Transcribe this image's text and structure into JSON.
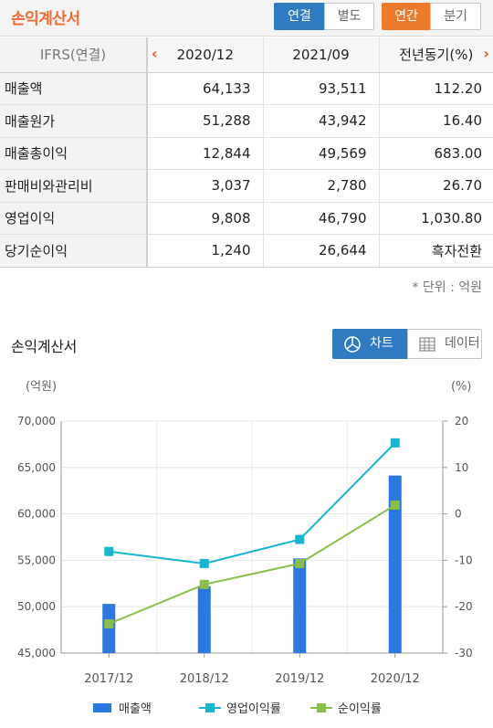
{
  "header": {
    "title": "손익계산서",
    "consolidated_label": "연결",
    "separate_label": "별도",
    "annual_label": "연간",
    "quarterly_label": "분기"
  },
  "table": {
    "corner_label": "IFRS(연결)",
    "columns": [
      "2020/12",
      "2021/09",
      "전년동기(%)"
    ],
    "rows": [
      {
        "label": "매출액",
        "values": [
          "64,133",
          "93,511",
          "112.20"
        ]
      },
      {
        "label": "매출원가",
        "values": [
          "51,288",
          "43,942",
          "16.40"
        ]
      },
      {
        "label": "매출총이익",
        "values": [
          "12,844",
          "49,569",
          "683.00"
        ]
      },
      {
        "label": "판매비와관리비",
        "values": [
          "3,037",
          "2,780",
          "26.70"
        ]
      },
      {
        "label": "영업이익",
        "values": [
          "9,808",
          "46,790",
          "1,030.80"
        ]
      },
      {
        "label": "당기순이익",
        "values": [
          "1,240",
          "26,644",
          "흑자전환"
        ]
      }
    ]
  },
  "unit_note": "* 단위 : 억원",
  "chart_section": {
    "title": "손익계산서",
    "chart_label": "차트",
    "data_label": "데이터"
  },
  "colors": {
    "accent_orange": "#ef6a32",
    "button_blue": "#2f7ac0",
    "bar_blue": "#2a78e0",
    "line_cyan": "#17b5cf",
    "line_green": "#8bbd4a"
  },
  "chart_data": {
    "type": "bar",
    "categories": [
      "2017/12",
      "2018/12",
      "2019/12",
      "2020/12"
    ],
    "left_axis": {
      "label": "(억원)",
      "ylim": [
        45000,
        70000
      ],
      "ticks": [
        "45,000",
        "50,000",
        "55,000",
        "60,000",
        "65,000",
        "70,000"
      ]
    },
    "right_axis": {
      "label": "(%)",
      "ylim": [
        -30,
        20
      ],
      "ticks": [
        "-30",
        "-20",
        "-10",
        "0",
        "10",
        "20"
      ]
    },
    "series": [
      {
        "name": "매출액",
        "type": "bar",
        "axis": "left",
        "values": [
          50300,
          52200,
          55200,
          64133
        ]
      },
      {
        "name": "영업이익률",
        "type": "line",
        "axis": "right",
        "values": [
          -8.1,
          -10.7,
          -5.5,
          15.3
        ]
      },
      {
        "name": "순이익률",
        "type": "line",
        "axis": "right",
        "values": [
          -23.7,
          -15.2,
          -10.7,
          1.9
        ]
      }
    ],
    "grid": true,
    "legend": "bottom"
  }
}
